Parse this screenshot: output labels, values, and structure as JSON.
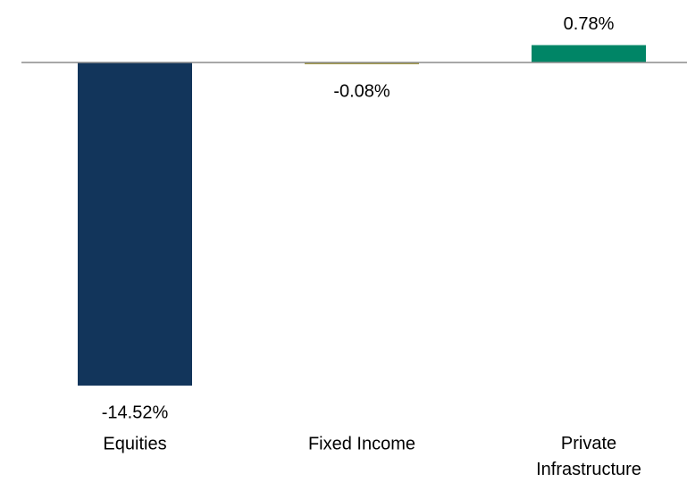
{
  "chart_data": {
    "type": "bar",
    "categories": [
      "Equities",
      "Fixed Income",
      "Private Infrastructure"
    ],
    "values": [
      -14.52,
      -0.08,
      0.78
    ],
    "value_labels": [
      "-14.52%",
      "-0.08%",
      "0.78%"
    ],
    "colors": [
      "#12355b",
      "#a39a4a",
      "#008566"
    ],
    "ylim": [
      -15,
      1
    ]
  }
}
